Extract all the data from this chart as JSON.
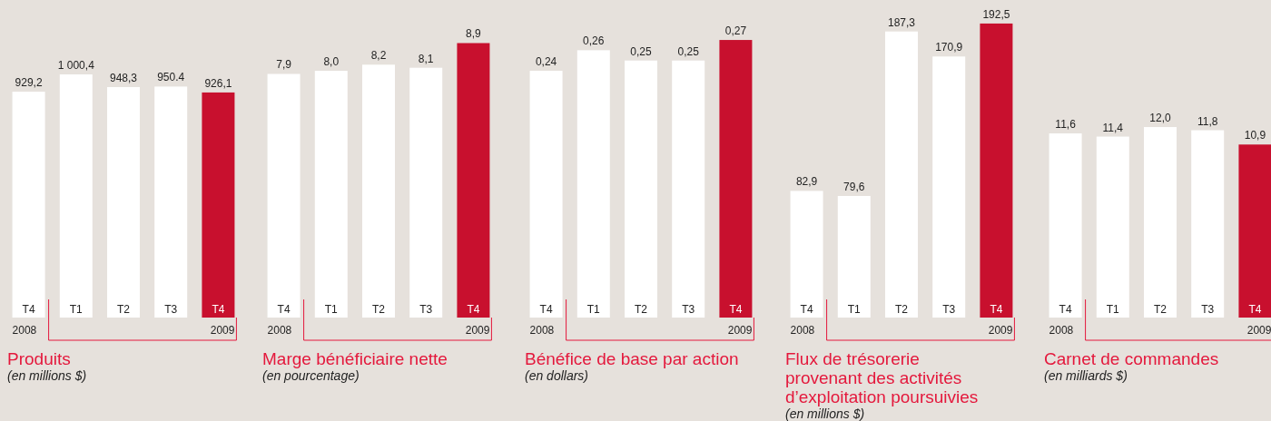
{
  "chart_data": [
    {
      "type": "bar",
      "title": "Produits",
      "subtitle": "(en millions $)",
      "categories": [
        "T4",
        "T1",
        "T2",
        "T3",
        "T4"
      ],
      "annotations": [
        "2008",
        "2009"
      ],
      "values": [
        929.2,
        1000.4,
        948.3,
        950.4,
        926.1
      ],
      "value_labels": [
        "929,2",
        "1 000,4",
        "948,3",
        "950.4",
        "926,1"
      ],
      "colors": [
        "#ffffff",
        "#ffffff",
        "#ffffff",
        "#ffffff",
        "#c8102e"
      ]
    },
    {
      "type": "bar",
      "title": "Marge bénéficiaire nette",
      "subtitle": "(en pourcentage)",
      "categories": [
        "T4",
        "T1",
        "T2",
        "T3",
        "T4"
      ],
      "annotations": [
        "2008",
        "2009"
      ],
      "values": [
        7.9,
        8.0,
        8.2,
        8.1,
        8.9
      ],
      "value_labels": [
        "7,9",
        "8,0",
        "8,2",
        "8,1",
        "8,9"
      ],
      "colors": [
        "#ffffff",
        "#ffffff",
        "#ffffff",
        "#ffffff",
        "#c8102e"
      ]
    },
    {
      "type": "bar",
      "title": "Bénéfice de base par action",
      "subtitle": "(en dollars)",
      "categories": [
        "T4",
        "T1",
        "T2",
        "T3",
        "T4"
      ],
      "annotations": [
        "2008",
        "2009"
      ],
      "values": [
        0.24,
        0.26,
        0.25,
        0.25,
        0.27
      ],
      "value_labels": [
        "0,24",
        "0,26",
        "0,25",
        "0,25",
        "0,27"
      ],
      "colors": [
        "#ffffff",
        "#ffffff",
        "#ffffff",
        "#ffffff",
        "#c8102e"
      ]
    },
    {
      "type": "bar",
      "title": "Flux de trésorerie provenant des activités d’exploitation poursuivies",
      "subtitle": "(en millions $)",
      "categories": [
        "T4",
        "T1",
        "T2",
        "T3",
        "T4"
      ],
      "annotations": [
        "2008",
        "2009"
      ],
      "values": [
        82.9,
        79.6,
        187.3,
        170.9,
        192.5
      ],
      "value_labels": [
        "82,9",
        "79,6",
        "187,3",
        "170,9",
        "192,5"
      ],
      "colors": [
        "#ffffff",
        "#ffffff",
        "#ffffff",
        "#ffffff",
        "#c8102e"
      ]
    },
    {
      "type": "bar",
      "title": "Carnet de commandes",
      "subtitle": "(en milliards $)",
      "categories": [
        "T4",
        "T1",
        "T2",
        "T3",
        "T4"
      ],
      "annotations": [
        "2008",
        "2009"
      ],
      "values": [
        11.6,
        11.4,
        12.0,
        11.8,
        10.9
      ],
      "value_labels": [
        "11,6",
        "11,4",
        "12,0",
        "11,8",
        "10,9"
      ],
      "colors": [
        "#ffffff",
        "#ffffff",
        "#ffffff",
        "#ffffff",
        "#c8102e"
      ]
    }
  ]
}
